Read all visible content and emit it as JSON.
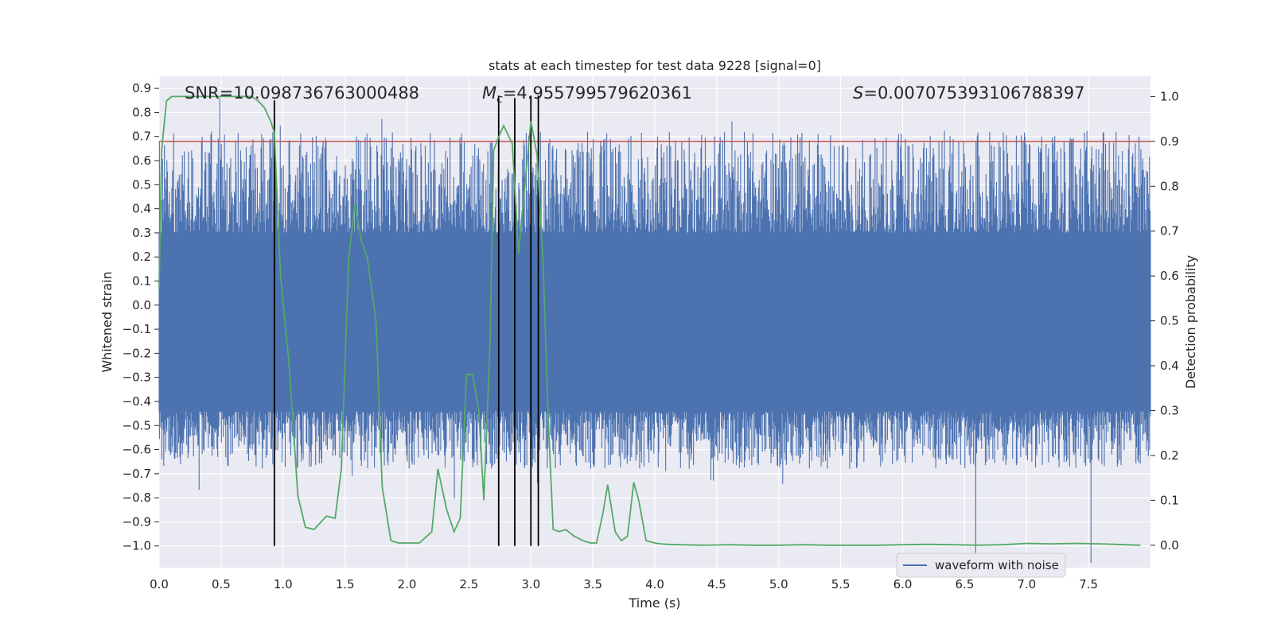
{
  "chart_data": {
    "type": "line",
    "title": "stats at each timestep for test data 9228 [signal=0]",
    "xlabel": "Time (s)",
    "ylabel": "Whitened strain",
    "y2label": "Detection probability",
    "xlim": [
      0.0,
      8.0
    ],
    "ylim": [
      -1.09,
      0.95
    ],
    "y2lim": [
      -0.05,
      1.045
    ],
    "xticks": [
      "0.0",
      "0.5",
      "1.0",
      "1.5",
      "2.0",
      "2.5",
      "3.0",
      "3.5",
      "4.0",
      "4.5",
      "5.0",
      "5.5",
      "6.0",
      "6.5",
      "7.0",
      "7.5"
    ],
    "yticks": [
      "0.9",
      "0.8",
      "0.7",
      "0.6",
      "0.5",
      "0.4",
      "0.3",
      "0.2",
      "0.1",
      "0.0",
      "−0.1",
      "−0.2",
      "−0.3",
      "−0.4",
      "−0.5",
      "−0.6",
      "−0.7",
      "−0.8",
      "−0.9",
      "−1.0"
    ],
    "y2ticks": [
      "1.0",
      "0.9",
      "0.8",
      "0.7",
      "0.6",
      "0.5",
      "0.4",
      "0.3",
      "0.2",
      "0.1",
      "0.0"
    ],
    "annotations": {
      "snr": "SNR=10.098736763000488",
      "mc_symbol": "M",
      "mc_sub": "c",
      "mc_value": "=4.955799579620361",
      "s_symbol": "S",
      "s_value": "=0.007075393106788397"
    },
    "legend": {
      "label": "waveform with noise",
      "location": "lower-right"
    },
    "threshold": {
      "y2": 0.9,
      "color": "#c44e52"
    },
    "vlines": [
      {
        "x": 0.93,
        "y_top": 0.85
      },
      {
        "x": 2.74,
        "y_top": 0.87
      },
      {
        "x": 2.87,
        "y_top": 0.86
      },
      {
        "x": 3.0,
        "y_top": 0.87
      },
      {
        "x": 3.06,
        "y_top": 0.87
      }
    ],
    "waveform": {
      "name": "waveform with noise",
      "color": "#4c72b0",
      "dense_band": [
        -0.44,
        0.3
      ],
      "peak_envelope": [
        0.72,
        0.8
      ],
      "trough_envelope": [
        -0.82,
        -0.68
      ],
      "outliers": [
        {
          "x": 0.49,
          "y": 0.86
        },
        {
          "x": 6.59,
          "y": -1.08
        },
        {
          "x": 7.52,
          "y": -1.07
        }
      ]
    },
    "detection_probability": {
      "name": "detection probability",
      "color": "#55a868",
      "x": [
        0.0,
        0.02,
        0.06,
        0.1,
        0.2,
        0.4,
        0.6,
        0.75,
        0.8,
        0.85,
        0.9,
        0.93,
        0.98,
        1.05,
        1.12,
        1.18,
        1.25,
        1.3,
        1.35,
        1.42,
        1.47,
        1.53,
        1.58,
        1.63,
        1.68,
        1.75,
        1.8,
        1.87,
        1.93,
        1.97,
        2.0,
        2.1,
        2.2,
        2.25,
        2.32,
        2.38,
        2.43,
        2.48,
        2.53,
        2.58,
        2.62,
        2.67,
        2.7,
        2.74,
        2.78,
        2.85,
        2.9,
        2.95,
        3.0,
        3.05,
        3.1,
        3.14,
        3.18,
        3.23,
        3.28,
        3.35,
        3.42,
        3.48,
        3.53,
        3.58,
        3.62,
        3.68,
        3.73,
        3.78,
        3.83,
        3.87,
        3.93,
        4.0,
        4.05,
        4.1,
        4.2,
        4.4,
        4.6,
        4.8,
        5.0,
        5.2,
        5.4,
        5.6,
        5.8,
        6.0,
        6.2,
        6.4,
        6.6,
        6.8,
        7.0,
        7.2,
        7.4,
        7.6,
        7.8,
        7.92
      ],
      "y": [
        0.57,
        0.88,
        0.99,
        1.0,
        1.0,
        1.0,
        1.0,
        1.0,
        0.99,
        0.975,
        0.945,
        0.92,
        0.6,
        0.4,
        0.11,
        0.04,
        0.035,
        0.05,
        0.065,
        0.06,
        0.17,
        0.64,
        0.76,
        0.68,
        0.64,
        0.5,
        0.13,
        0.01,
        0.005,
        0.005,
        0.005,
        0.005,
        0.03,
        0.17,
        0.08,
        0.03,
        0.06,
        0.38,
        0.38,
        0.3,
        0.1,
        0.45,
        0.88,
        0.91,
        0.935,
        0.895,
        0.65,
        0.8,
        0.945,
        0.87,
        0.62,
        0.28,
        0.035,
        0.03,
        0.035,
        0.02,
        0.01,
        0.005,
        0.005,
        0.07,
        0.135,
        0.03,
        0.01,
        0.02,
        0.14,
        0.1,
        0.01,
        0.005,
        0.003,
        0.002,
        0.001,
        0.0,
        0.001,
        0.0,
        0.0,
        0.001,
        0.0,
        0.0,
        0.0,
        0.001,
        0.002,
        0.001,
        0.0,
        0.001,
        0.004,
        0.003,
        0.004,
        0.003,
        0.001,
        0.0
      ]
    }
  }
}
